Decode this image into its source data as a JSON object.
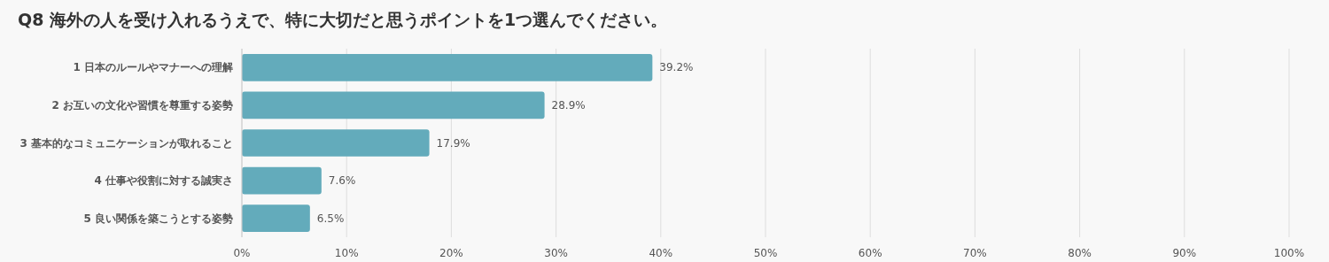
{
  "chart_data": {
    "type": "bar",
    "orientation": "horizontal",
    "title": "Q8 海外の人を受け入れるうえで、特に大切だと思うポイントを1つ選んでください。",
    "categories": [
      "1 日本のルールやマナーへの理解",
      "2 お互いの文化や習慣を尊重する姿勢",
      "3 基本的なコミュニケーションが取れること",
      "4 仕事や役割に対する誠実さ",
      "5 良い関係を築こうとする姿勢"
    ],
    "values": [
      39.2,
      28.9,
      17.9,
      7.6,
      6.5
    ],
    "value_labels": [
      "39.2%",
      "28.9%",
      "17.9%",
      "7.6%",
      "6.5%"
    ],
    "color": "#63abbb",
    "xlim": [
      0,
      100
    ],
    "xticks": [
      {
        "value": 0,
        "label": "0%"
      },
      {
        "value": 10,
        "label": "10%"
      },
      {
        "value": 20,
        "label": "20%"
      },
      {
        "value": 30,
        "label": "30%"
      },
      {
        "value": 40,
        "label": "40%"
      },
      {
        "value": 50,
        "label": "50%"
      },
      {
        "value": 60,
        "label": "60%"
      },
      {
        "value": 70,
        "label": "70%"
      },
      {
        "value": 80,
        "label": "80%"
      },
      {
        "value": 90,
        "label": "90%"
      },
      {
        "value": 100,
        "label": "100%"
      }
    ],
    "grid": "x"
  }
}
